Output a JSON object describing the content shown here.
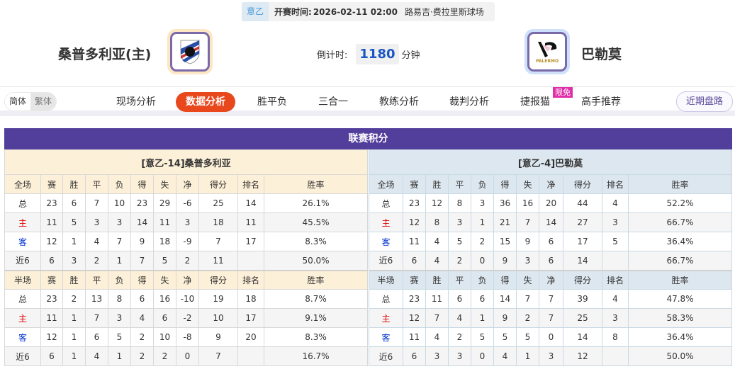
{
  "match": {
    "league": "意乙",
    "kickoff_label": "开赛时间:",
    "kickoff": "2026-02-11 02:00",
    "venue": "路易吉·费拉里斯球场"
  },
  "home": {
    "name": "桑普多利亚(主)",
    "logo": "sampdoria-crest"
  },
  "away": {
    "name": "巴勒莫",
    "logo": "palermo-crest",
    "logo_text": "PALERMO"
  },
  "countdown": {
    "label": "倒计时:",
    "value": "1180",
    "unit": "分钟"
  },
  "nav": {
    "lang": [
      "简体",
      "繁体"
    ],
    "tabs": [
      "现场分析",
      "数据分析",
      "胜平负",
      "三合一",
      "教练分析",
      "裁判分析",
      "捷报猫",
      "高手推荐"
    ],
    "active": "数据分析",
    "badge": "限免",
    "recent": "近期盘路"
  },
  "colors": {
    "accent": "#e8481c",
    "header": "#523f9b",
    "home_red": "#e00000",
    "away_blue": "#0033cc"
  },
  "standings": {
    "title": "联赛积分",
    "columns": [
      "赛",
      "胜",
      "平",
      "负",
      "得",
      "失",
      "净",
      "得分",
      "排名",
      "胜率"
    ],
    "full_label": "全场",
    "half_label": "半场",
    "home": {
      "caption": "[意乙-14]桑普多利亚",
      "full": [
        [
          "总",
          "23",
          "6",
          "7",
          "10",
          "23",
          "29",
          "-6",
          "25",
          "14",
          "26.1%"
        ],
        [
          "主",
          "11",
          "5",
          "3",
          "3",
          "14",
          "11",
          "3",
          "18",
          "11",
          "45.5%"
        ],
        [
          "客",
          "12",
          "1",
          "4",
          "7",
          "9",
          "18",
          "-9",
          "7",
          "17",
          "8.3%"
        ],
        [
          "近6",
          "6",
          "3",
          "2",
          "1",
          "7",
          "5",
          "2",
          "11",
          "",
          "50.0%"
        ]
      ],
      "half": [
        [
          "总",
          "23",
          "2",
          "13",
          "8",
          "6",
          "16",
          "-10",
          "19",
          "18",
          "8.7%"
        ],
        [
          "主",
          "11",
          "1",
          "7",
          "3",
          "4",
          "6",
          "-2",
          "10",
          "17",
          "9.1%"
        ],
        [
          "客",
          "12",
          "1",
          "6",
          "5",
          "2",
          "10",
          "-8",
          "9",
          "20",
          "8.3%"
        ],
        [
          "近6",
          "6",
          "1",
          "4",
          "1",
          "2",
          "2",
          "0",
          "7",
          "",
          "16.7%"
        ]
      ]
    },
    "away": {
      "caption": "[意乙-4]巴勒莫",
      "full": [
        [
          "总",
          "23",
          "12",
          "8",
          "3",
          "36",
          "16",
          "20",
          "44",
          "4",
          "52.2%"
        ],
        [
          "主",
          "12",
          "8",
          "3",
          "1",
          "21",
          "7",
          "14",
          "27",
          "3",
          "66.7%"
        ],
        [
          "客",
          "11",
          "4",
          "5",
          "2",
          "15",
          "9",
          "6",
          "17",
          "5",
          "36.4%"
        ],
        [
          "近6",
          "6",
          "4",
          "2",
          "0",
          "9",
          "3",
          "6",
          "14",
          "",
          "66.7%"
        ]
      ],
      "half": [
        [
          "总",
          "23",
          "11",
          "6",
          "6",
          "14",
          "7",
          "7",
          "39",
          "4",
          "47.8%"
        ],
        [
          "主",
          "12",
          "7",
          "4",
          "1",
          "9",
          "2",
          "7",
          "25",
          "3",
          "58.3%"
        ],
        [
          "客",
          "11",
          "4",
          "2",
          "5",
          "5",
          "5",
          "0",
          "14",
          "8",
          "36.4%"
        ],
        [
          "近6",
          "6",
          "3",
          "3",
          "0",
          "4",
          "1",
          "3",
          "12",
          "",
          "50.0%"
        ]
      ]
    }
  }
}
